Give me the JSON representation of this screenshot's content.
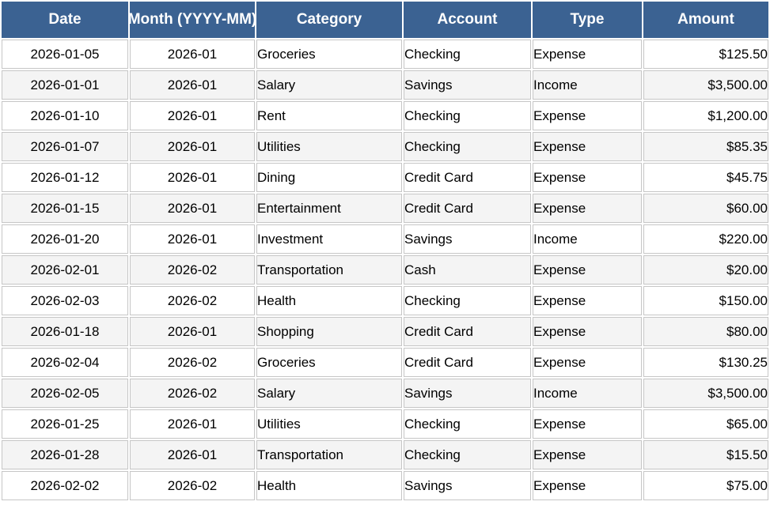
{
  "table": {
    "columns": [
      {
        "key": "date",
        "label": "Date",
        "align": "center"
      },
      {
        "key": "month",
        "label": "Month (YYYY-MM)",
        "align": "center"
      },
      {
        "key": "category",
        "label": "Category",
        "align": "left"
      },
      {
        "key": "account",
        "label": "Account",
        "align": "left"
      },
      {
        "key": "type",
        "label": "Type",
        "align": "left"
      },
      {
        "key": "amount",
        "label": "Amount",
        "align": "right"
      }
    ],
    "rows": [
      [
        "2026-01-05",
        "2026-01",
        "Groceries",
        "Checking",
        "Expense",
        "$125.50"
      ],
      [
        "2026-01-01",
        "2026-01",
        "Salary",
        "Savings",
        "Income",
        "$3,500.00"
      ],
      [
        "2026-01-10",
        "2026-01",
        "Rent",
        "Checking",
        "Expense",
        "$1,200.00"
      ],
      [
        "2026-01-07",
        "2026-01",
        "Utilities",
        "Checking",
        "Expense",
        "$85.35"
      ],
      [
        "2026-01-12",
        "2026-01",
        "Dining",
        "Credit Card",
        "Expense",
        "$45.75"
      ],
      [
        "2026-01-15",
        "2026-01",
        "Entertainment",
        "Credit Card",
        "Expense",
        "$60.00"
      ],
      [
        "2026-01-20",
        "2026-01",
        "Investment",
        "Savings",
        "Income",
        "$220.00"
      ],
      [
        "2026-02-01",
        "2026-02",
        "Transportation",
        "Cash",
        "Expense",
        "$20.00"
      ],
      [
        "2026-02-03",
        "2026-02",
        "Health",
        "Checking",
        "Expense",
        "$150.00"
      ],
      [
        "2026-01-18",
        "2026-01",
        "Shopping",
        "Credit Card",
        "Expense",
        "$80.00"
      ],
      [
        "2026-02-04",
        "2026-02",
        "Groceries",
        "Credit Card",
        "Expense",
        "$130.25"
      ],
      [
        "2026-02-05",
        "2026-02",
        "Salary",
        "Savings",
        "Income",
        "$3,500.00"
      ],
      [
        "2026-01-25",
        "2026-01",
        "Utilities",
        "Checking",
        "Expense",
        "$65.00"
      ],
      [
        "2026-01-28",
        "2026-01",
        "Transportation",
        "Checking",
        "Expense",
        "$15.50"
      ],
      [
        "2026-02-02",
        "2026-02",
        "Health",
        "Savings",
        "Expense",
        "$75.00"
      ]
    ]
  },
  "colors": {
    "header_bg": "#3b6292",
    "header_text": "#ffffff",
    "row_bg": "#ffffff",
    "row_alt_bg": "#f4f4f4",
    "border": "#c6c6c6",
    "text": "#000000"
  }
}
